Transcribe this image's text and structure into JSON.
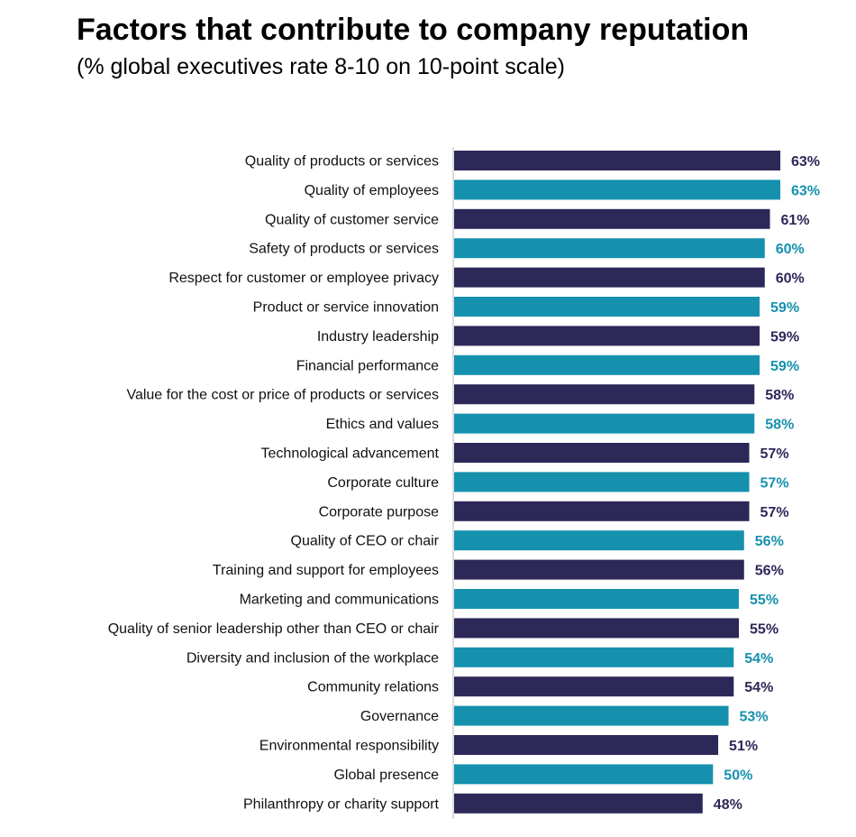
{
  "chart_data": {
    "type": "bar",
    "orientation": "horizontal",
    "title": "Factors that contribute to company reputation",
    "subtitle": "(% global executives rate 8-10 on 10-point scale)",
    "xlabel": "",
    "ylabel": "",
    "xlim": [
      0,
      63
    ],
    "grid": false,
    "value_suffix": "%",
    "colors": {
      "dark": "#2c2858",
      "teal": "#1591ae"
    },
    "categories": [
      "Quality of products or services",
      "Quality of employees",
      "Quality of customer service",
      "Safety of products or services",
      "Respect for customer or employee privacy",
      "Product or service innovation",
      "Industry leadership",
      "Financial performance",
      "Value for the cost or price of products or services",
      "Ethics and values",
      "Technological advancement",
      "Corporate culture",
      "Corporate purpose",
      "Quality of CEO or chair",
      "Training and support for employees",
      "Marketing and communications",
      "Quality of senior leadership other than CEO or chair",
      "Diversity and inclusion of the workplace",
      "Community relations",
      "Governance",
      "Environmental responsibility",
      "Global presence",
      "Philanthropy or charity support"
    ],
    "values": [
      63,
      63,
      61,
      60,
      60,
      59,
      59,
      59,
      58,
      58,
      57,
      57,
      57,
      56,
      56,
      55,
      55,
      54,
      54,
      53,
      51,
      50,
      48
    ]
  }
}
